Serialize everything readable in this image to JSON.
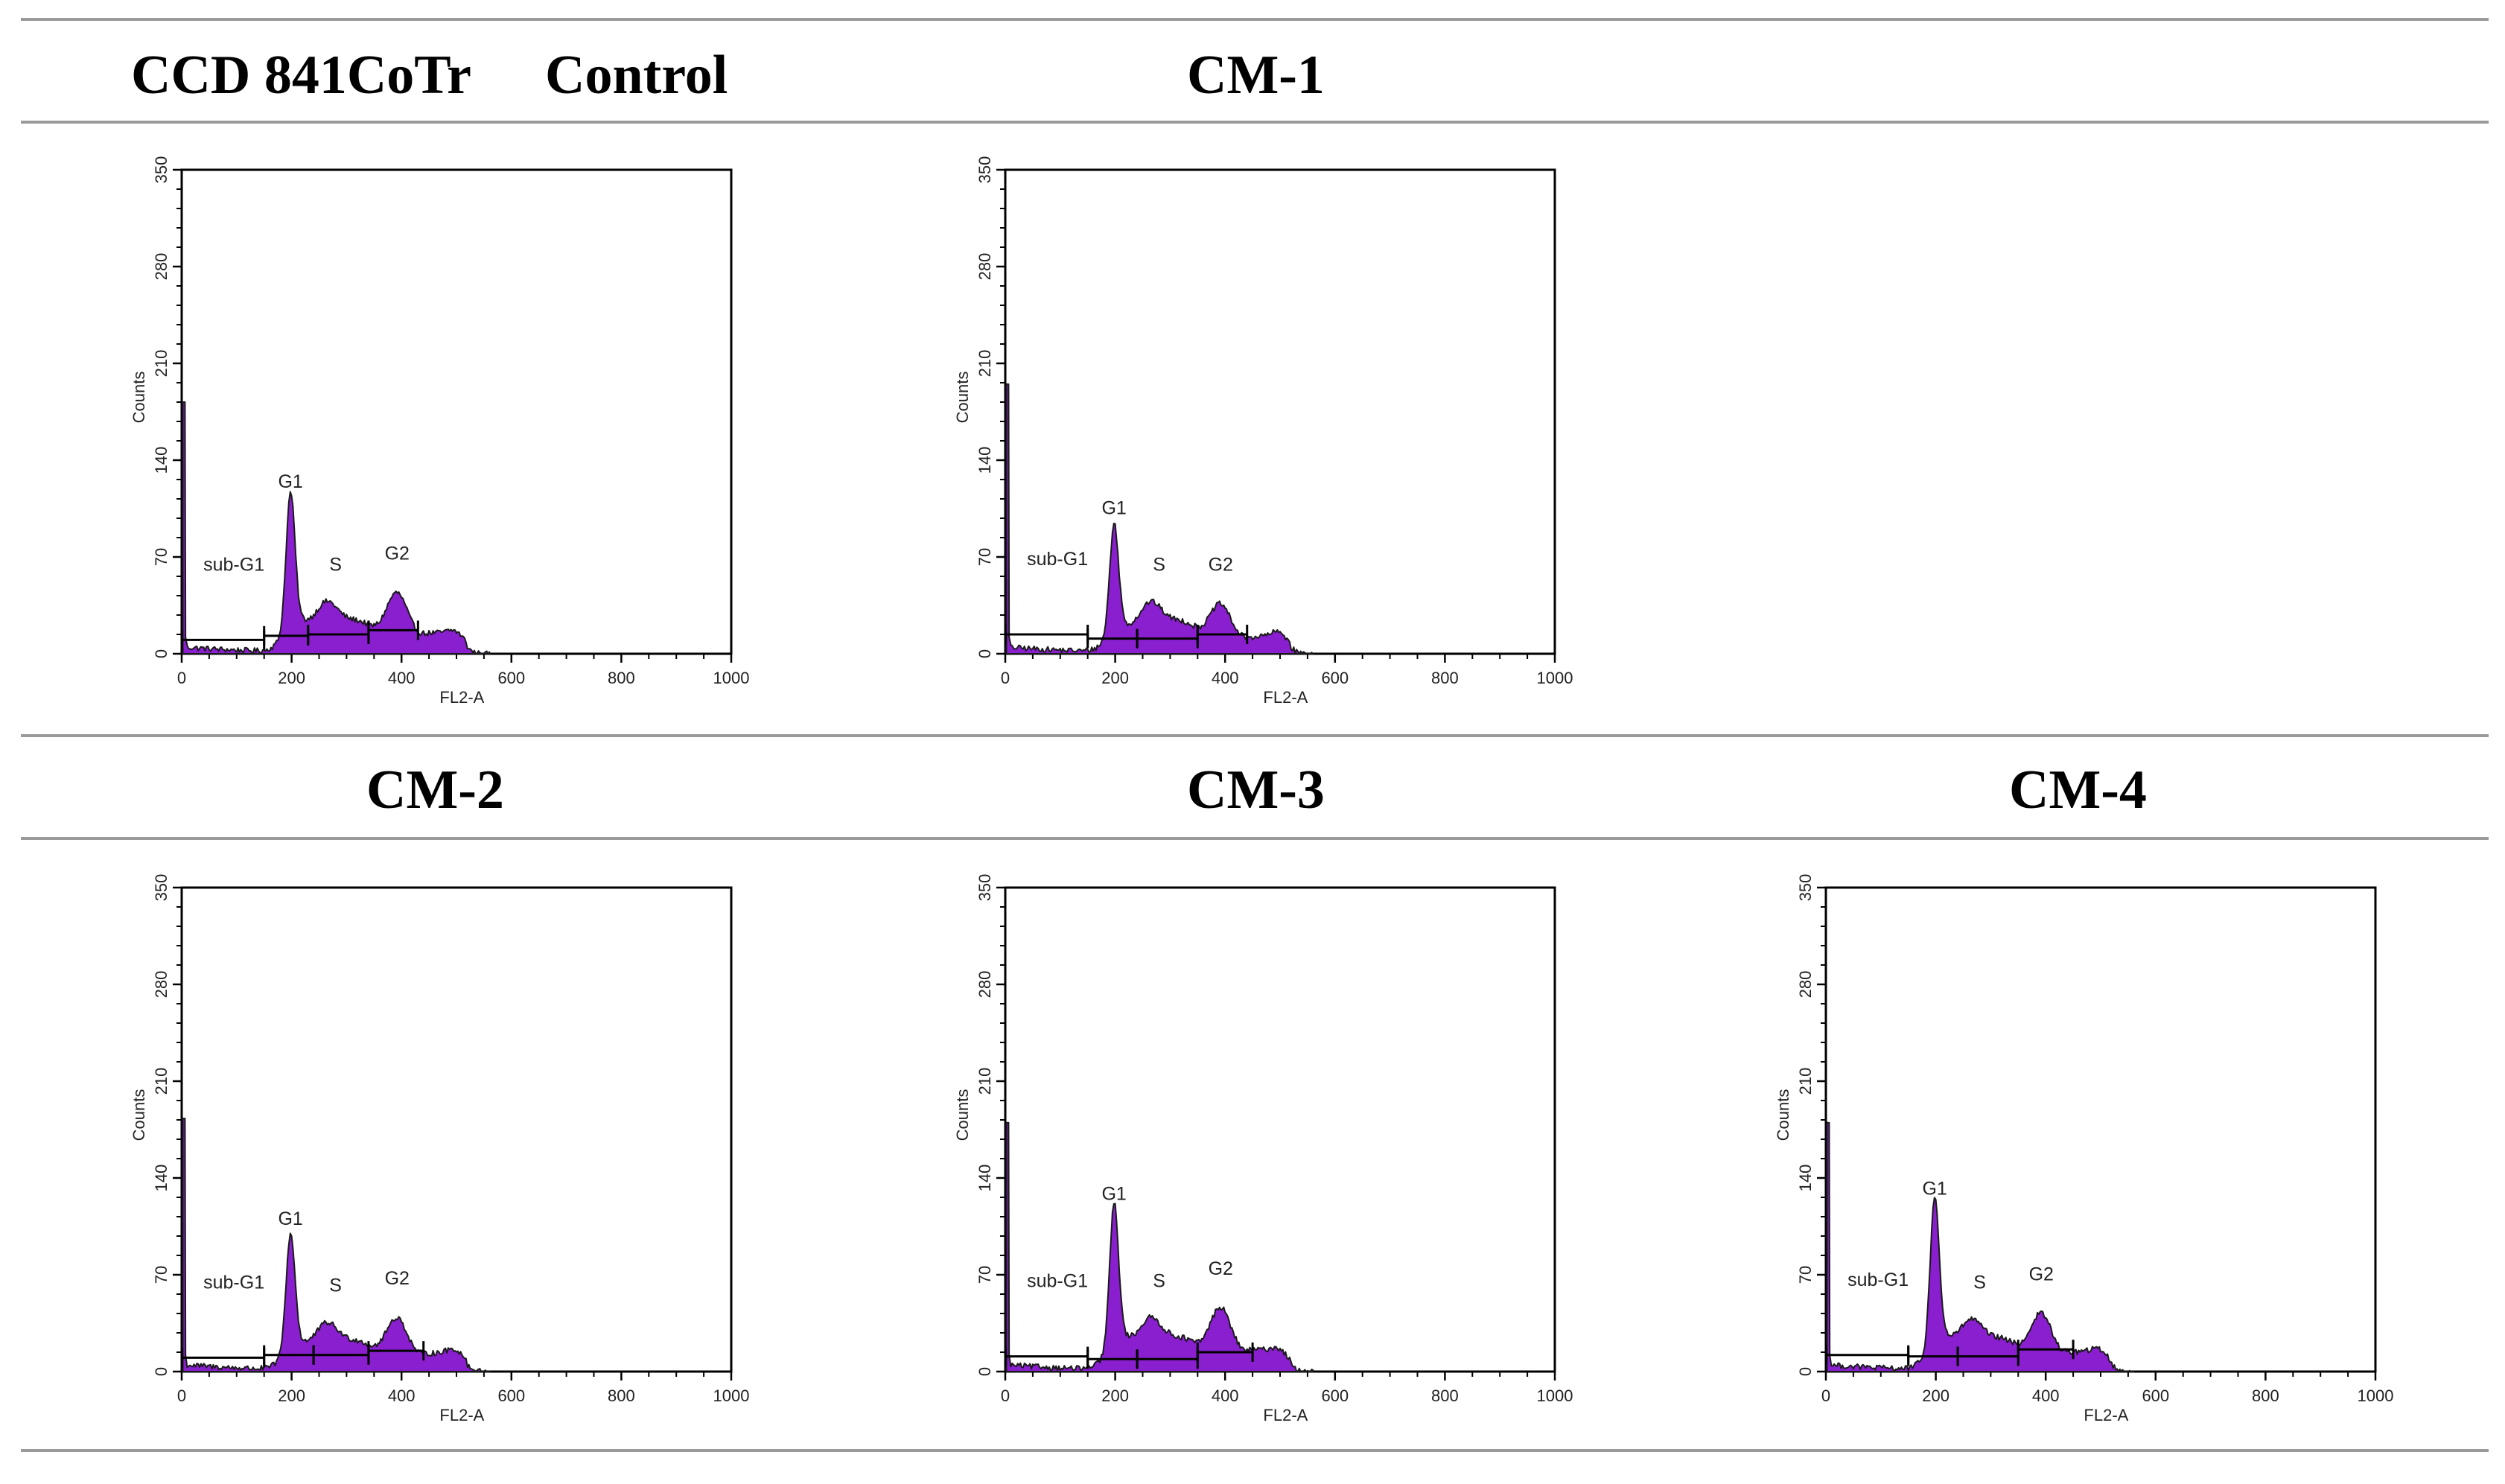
{
  "header": {
    "cell_line": "CCD 841CoTr",
    "control": "Control",
    "cm1": "CM-1",
    "cm2": "CM-2",
    "cm3": "CM-3",
    "cm4": "CM-4"
  },
  "colors": {
    "fill": "#8a1fcf",
    "outline": "#1a1a1a",
    "rule": "#9a9a9a"
  },
  "chart_data": [
    {
      "type": "area",
      "title": "CCD 841CoTr Control",
      "xlabel": "FL2-A",
      "ylabel": "Counts",
      "xlim": [
        0,
        1000
      ],
      "ylim": [
        0,
        350
      ],
      "xticks": [
        "0",
        "200",
        "400",
        "600",
        "800",
        "1000"
      ],
      "yticks": [
        "0",
        "70",
        "140",
        "210",
        "280",
        "350"
      ],
      "spike": 182,
      "peaks": {
        "g1": 96,
        "s": 30,
        "g2": 40
      },
      "gates": [
        {
          "name": "sub-G1",
          "range": [
            0,
            150
          ],
          "level": 10
        },
        {
          "name": "G1",
          "range": [
            150,
            230
          ],
          "level": 13
        },
        {
          "name": "S",
          "range": [
            230,
            340
          ],
          "level": 14
        },
        {
          "name": "G2",
          "range": [
            340,
            430
          ],
          "level": 17
        }
      ],
      "phase_labels": [
        "sub-G1",
        "G1",
        "S",
        "G2"
      ]
    },
    {
      "type": "area",
      "title": "CM-1",
      "xlabel": "FL2-A",
      "ylabel": "Counts",
      "xlim": [
        0,
        1000
      ],
      "ylim": [
        0,
        350
      ],
      "xticks": [
        "0",
        "200",
        "400",
        "600",
        "800",
        "1000"
      ],
      "yticks": [
        "0",
        "70",
        "140",
        "210",
        "280",
        "350"
      ],
      "spike": 195,
      "peaks": {
        "g1": 77,
        "s": 30,
        "g2": 32
      },
      "gates": [
        {
          "name": "sub-G1",
          "range": [
            0,
            150
          ],
          "level": 14
        },
        {
          "name": "G1",
          "range": [
            150,
            240
          ],
          "level": 11
        },
        {
          "name": "S",
          "range": [
            240,
            350
          ],
          "level": 11
        },
        {
          "name": "G2",
          "range": [
            350,
            440
          ],
          "level": 14
        }
      ],
      "phase_labels": [
        "sub-G1",
        "G1",
        "S",
        "G2"
      ]
    },
    {
      "type": "area",
      "title": "CM-2",
      "xlabel": "FL2-A",
      "ylabel": "Counts",
      "xlim": [
        0,
        1000
      ],
      "ylim": [
        0,
        350
      ],
      "xticks": [
        "0",
        "200",
        "400",
        "600",
        "800",
        "1000"
      ],
      "yticks": [
        "0",
        "70",
        "140",
        "210",
        "280",
        "350"
      ],
      "spike": 183,
      "peaks": {
        "g1": 82,
        "s": 28,
        "g2": 35
      },
      "gates": [
        {
          "name": "sub-G1",
          "range": [
            0,
            150
          ],
          "level": 10
        },
        {
          "name": "G1",
          "range": [
            150,
            240
          ],
          "level": 12
        },
        {
          "name": "S",
          "range": [
            240,
            340
          ],
          "level": 12
        },
        {
          "name": "G2",
          "range": [
            340,
            440
          ],
          "level": 15
        }
      ],
      "phase_labels": [
        "sub-G1",
        "G1",
        "S",
        "G2"
      ]
    },
    {
      "type": "area",
      "title": "CM-3",
      "xlabel": "FL2-A",
      "ylabel": "Counts",
      "xlim": [
        0,
        1000
      ],
      "ylim": [
        0,
        350
      ],
      "xticks": [
        "0",
        "200",
        "400",
        "600",
        "800",
        "1000"
      ],
      "yticks": [
        "0",
        "70",
        "140",
        "210",
        "280",
        "350"
      ],
      "spike": 180,
      "peaks": {
        "g1": 100,
        "s": 31,
        "g2": 42
      },
      "gates": [
        {
          "name": "sub-G1",
          "range": [
            0,
            150
          ],
          "level": 11
        },
        {
          "name": "G1",
          "range": [
            150,
            240
          ],
          "level": 9
        },
        {
          "name": "S",
          "range": [
            240,
            350
          ],
          "level": 9
        },
        {
          "name": "G2",
          "range": [
            350,
            450
          ],
          "level": 14
        }
      ],
      "phase_labels": [
        "sub-G1",
        "G1",
        "S",
        "G2"
      ]
    },
    {
      "type": "area",
      "title": "CM-4",
      "xlabel": "FL2-A",
      "ylabel": "Counts",
      "xlim": [
        0,
        1000
      ],
      "ylim": [
        0,
        350
      ],
      "xticks": [
        "0",
        "200",
        "400",
        "600",
        "800",
        "1000"
      ],
      "yticks": [
        "0",
        "70",
        "140",
        "210",
        "280",
        "350"
      ],
      "spike": 180,
      "peaks": {
        "g1": 104,
        "s": 30,
        "g2": 38
      },
      "gates": [
        {
          "name": "sub-G1",
          "range": [
            0,
            150
          ],
          "level": 12
        },
        {
          "name": "G1",
          "range": [
            150,
            240
          ],
          "level": 11
        },
        {
          "name": "S",
          "range": [
            240,
            350
          ],
          "level": 11
        },
        {
          "name": "G2",
          "range": [
            350,
            450
          ],
          "level": 16
        }
      ],
      "phase_labels": [
        "sub-G1",
        "G1",
        "S",
        "G2"
      ]
    }
  ]
}
